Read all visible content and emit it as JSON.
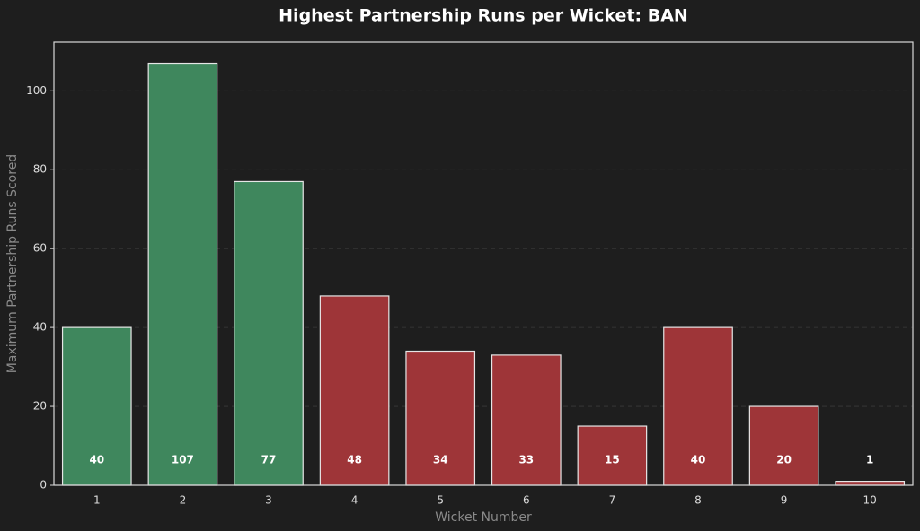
{
  "chart_data": {
    "type": "bar",
    "title": "Highest Partnership Runs per Wicket: BAN",
    "x_label": "Wicket Number",
    "y_label": "Maximum Partnership Runs Scored",
    "categories": [
      "1",
      "2",
      "3",
      "4",
      "5",
      "6",
      "7",
      "8",
      "9",
      "10"
    ],
    "values": [
      40,
      107,
      77,
      48,
      34,
      33,
      15,
      40,
      20,
      1
    ],
    "colors": [
      "#3f875d",
      "#3f875d",
      "#3f875d",
      "#9e3538",
      "#9e3538",
      "#9e3538",
      "#9e3538",
      "#9e3538",
      "#9e3538",
      "#9e3538"
    ],
    "ylim": [
      0,
      112.35
    ],
    "yticks": [
      0,
      20,
      40,
      60,
      80,
      100
    ],
    "grid": true
  }
}
